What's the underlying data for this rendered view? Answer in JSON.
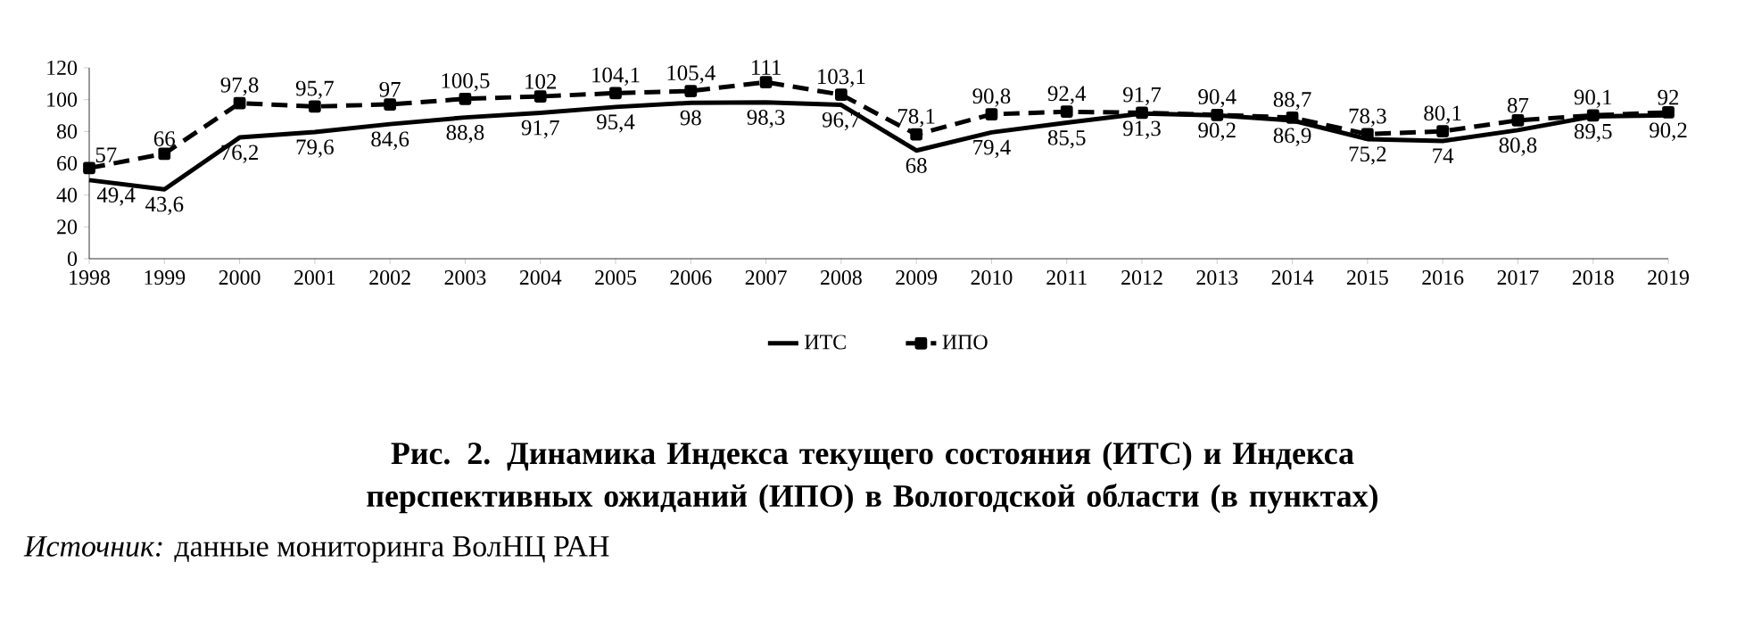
{
  "chart_data": {
    "type": "line",
    "title": "Рис. 2. Динамика Индекса текущего состояния (ИТС) и Индекса перспективных ожиданий (ИПО) в Вологодской области (в пунктах)",
    "annotations": [
      "*Источник:* данные мониторинга ВолНЦ РАН"
    ],
    "categories": [
      "1998",
      "1999",
      "2000",
      "2001",
      "2002",
      "2003",
      "2004",
      "2005",
      "2006",
      "2007",
      "2008",
      "2009",
      "2010",
      "2011",
      "2012",
      "2013",
      "2014",
      "2015",
      "2016",
      "2017",
      "2018",
      "2019"
    ],
    "ylim": [
      0,
      120
    ],
    "yticks": [
      0,
      20,
      40,
      60,
      80,
      100,
      120
    ],
    "legend": "bottom",
    "series": [
      {
        "name": "ИТС",
        "color": "#000000",
        "line_style": "solid",
        "marker": "none",
        "values": [
          49.4,
          43.6,
          76.2,
          79.6,
          84.6,
          88.8,
          91.7,
          95.4,
          98,
          98.3,
          96.7,
          68,
          79.4,
          85.5,
          91.3,
          90.2,
          86.9,
          75.2,
          74,
          80.8,
          89.5,
          90.2
        ],
        "value_labels": [
          "49,4",
          "43,6",
          "76,2",
          "79,6",
          "84,6",
          "88,8",
          "91,7",
          "95,4",
          "98",
          "98,3",
          "96,7",
          "68",
          "79,4",
          "85,5",
          "91,3",
          "90,2",
          "86,9",
          "75,2",
          "74",
          "80,8",
          "89,5",
          "90,2"
        ]
      },
      {
        "name": "ИПО",
        "color": "#000000",
        "line_style": "dashed",
        "marker": "square",
        "values": [
          57,
          66,
          97.8,
          95.7,
          97,
          100.5,
          102,
          104.1,
          105.4,
          111,
          103.1,
          78.1,
          90.8,
          92.4,
          91.7,
          90.4,
          88.7,
          78.3,
          80.1,
          87,
          90.1,
          92
        ],
        "value_labels": [
          "57",
          "66",
          "97,8",
          "95,7",
          "97",
          "100,5",
          "102",
          "104,1",
          "105,4",
          "111",
          "103,1",
          "78,1",
          "90,8",
          "92,4",
          "91,7",
          "90,4",
          "88,7",
          "78,3",
          "80,1",
          "87",
          "90,1",
          "92"
        ]
      }
    ]
  }
}
